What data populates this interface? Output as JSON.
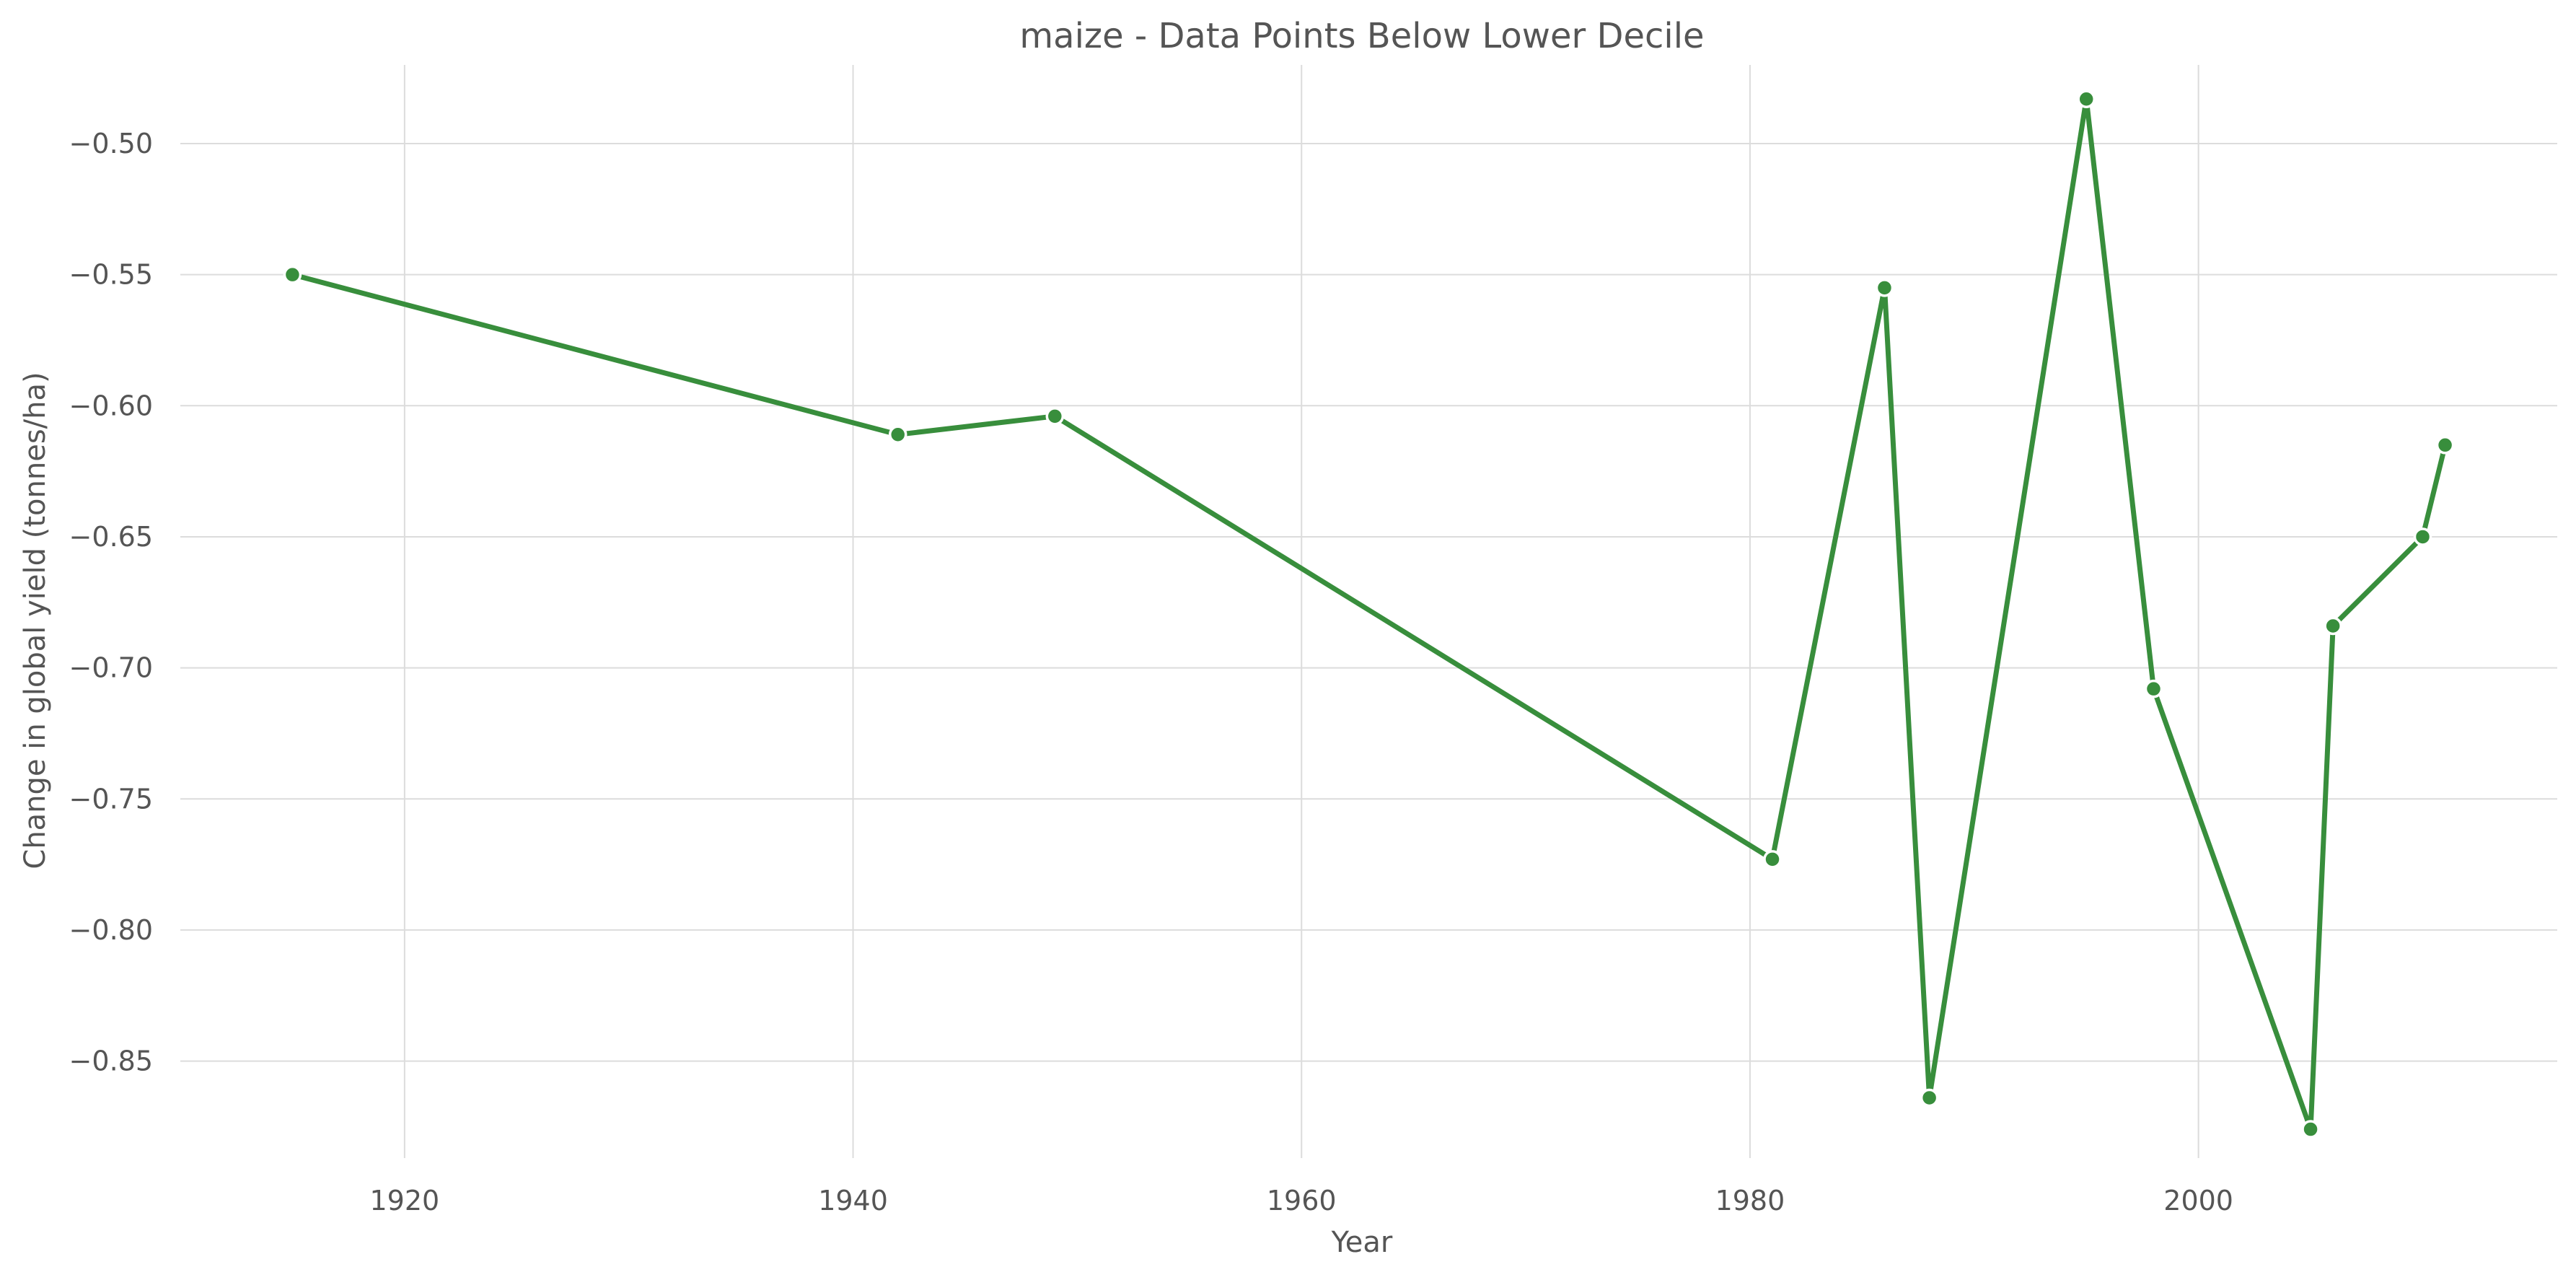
{
  "chart_data": {
    "type": "line",
    "title": "maize - Data Points Below Lower Decile",
    "xlabel": "Year",
    "ylabel": "Change in global yield (tonnes/ha)",
    "xlim": [
      1910,
      2016
    ],
    "ylim": [
      -0.887,
      -0.47
    ],
    "x_ticks": [
      1920,
      1940,
      1960,
      1980,
      2000
    ],
    "x_tick_labels": [
      "1920",
      "1940",
      "1960",
      "1980",
      "2000"
    ],
    "y_ticks": [
      -0.5,
      -0.55,
      -0.6,
      -0.65,
      -0.7,
      -0.75,
      -0.8,
      -0.85
    ],
    "y_tick_labels": [
      "−0.50",
      "−0.55",
      "−0.60",
      "−0.65",
      "−0.70",
      "−0.75",
      "−0.80",
      "−0.85"
    ],
    "grid": true,
    "color": "#388e3c",
    "series": [
      {
        "x": [
          1915,
          1942,
          1949,
          1981,
          1986,
          1988,
          1995,
          1998,
          2005,
          2006,
          2010,
          2011
        ],
        "y": [
          -0.55,
          -0.611,
          -0.604,
          -0.773,
          -0.555,
          -0.864,
          -0.483,
          -0.708,
          -0.876,
          -0.684,
          -0.65,
          -0.615
        ]
      }
    ]
  }
}
